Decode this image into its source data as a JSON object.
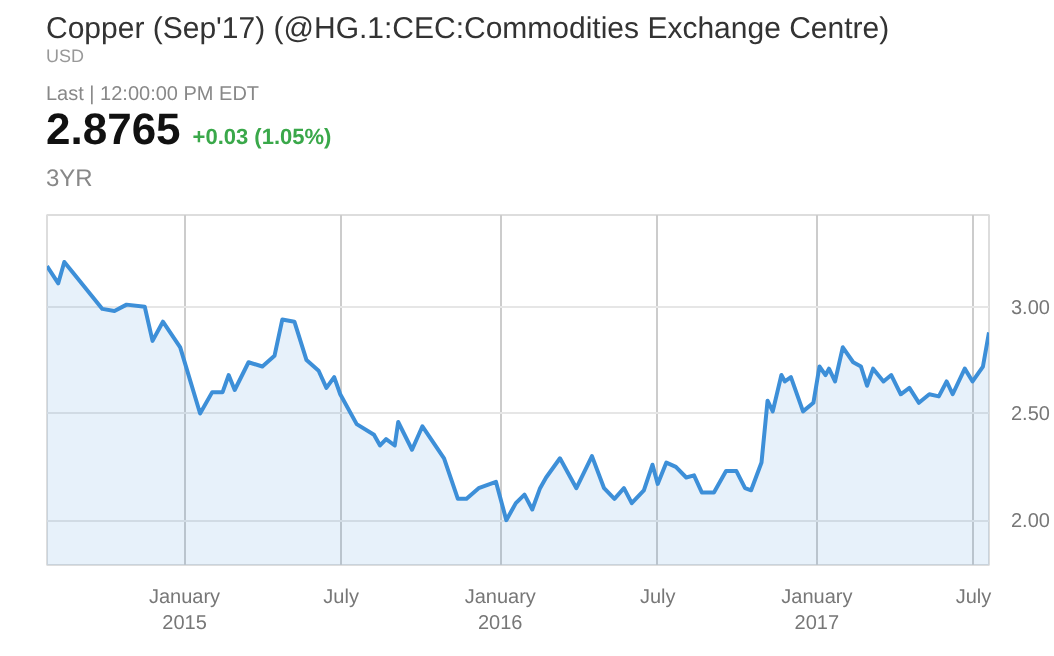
{
  "chart_data": {
    "type": "area",
    "title": "Copper (Sep'17) (@HG.1:CEC:Commodities Exchange Centre)",
    "subtitle": "USD",
    "annotations": [
      "Last | 12:00:00 PM EDT",
      "2.8765",
      "+0.03 (1.05%)",
      "3YR"
    ],
    "x": [
      "2014-07-26",
      "2014-08-08",
      "2014-08-15",
      "2014-08-27",
      "2014-09-10",
      "2014-09-28",
      "2014-10-12",
      "2014-10-26",
      "2014-11-16",
      "2014-11-25",
      "2014-12-07",
      "2014-12-27",
      "2015-01-19",
      "2015-02-02",
      "2015-02-14",
      "2015-02-21",
      "2015-02-28",
      "2015-03-16",
      "2015-04-01",
      "2015-04-15",
      "2015-04-24",
      "2015-05-08",
      "2015-05-22",
      "2015-06-05",
      "2015-06-14",
      "2015-06-23",
      "2015-06-30",
      "2015-07-19",
      "2015-08-08",
      "2015-08-15",
      "2015-08-22",
      "2015-09-01",
      "2015-09-05",
      "2015-09-21",
      "2015-10-03",
      "2015-10-28",
      "2015-11-13",
      "2015-11-23",
      "2015-12-07",
      "2015-12-27",
      "2016-01-08",
      "2016-01-19",
      "2016-01-29",
      "2016-02-07",
      "2016-02-16",
      "2016-02-23",
      "2016-03-10",
      "2016-03-29",
      "2016-04-16",
      "2016-04-30",
      "2016-05-12",
      "2016-05-23",
      "2016-06-01",
      "2016-06-15",
      "2016-06-25",
      "2016-07-01",
      "2016-07-11",
      "2016-07-22",
      "2016-08-03",
      "2016-08-12",
      "2016-08-21",
      "2016-09-04",
      "2016-09-18",
      "2016-09-30",
      "2016-10-10",
      "2016-10-17",
      "2016-10-29",
      "2016-11-05",
      "2016-11-11",
      "2016-11-21",
      "2016-11-25",
      "2016-12-02",
      "2016-12-16",
      "2016-12-28",
      "2017-01-04",
      "2017-01-11",
      "2017-01-15",
      "2017-01-22",
      "2017-01-31",
      "2017-02-12",
      "2017-02-21",
      "2017-02-28",
      "2017-03-07",
      "2017-03-19",
      "2017-03-28",
      "2017-04-08",
      "2017-04-18",
      "2017-04-29",
      "2017-05-11",
      "2017-05-22",
      "2017-05-31",
      "2017-06-07",
      "2017-06-21",
      "2017-06-30",
      "2017-07-12",
      "2017-07-19"
    ],
    "series": [
      {
        "color": "#3d8fd8",
        "values": [
          3.19,
          3.11,
          3.21,
          3.15,
          3.08,
          2.99,
          2.98,
          3.01,
          3.0,
          2.84,
          2.93,
          2.81,
          2.5,
          2.6,
          2.6,
          2.68,
          2.61,
          2.74,
          2.72,
          2.77,
          2.94,
          2.93,
          2.75,
          2.7,
          2.62,
          2.67,
          2.59,
          2.45,
          2.4,
          2.35,
          2.38,
          2.35,
          2.46,
          2.33,
          2.44,
          2.29,
          2.1,
          2.1,
          2.15,
          2.18,
          2.0,
          2.08,
          2.12,
          2.05,
          2.15,
          2.2,
          2.29,
          2.15,
          2.3,
          2.15,
          2.1,
          2.15,
          2.08,
          2.14,
          2.26,
          2.17,
          2.27,
          2.25,
          2.2,
          2.21,
          2.13,
          2.13,
          2.23,
          2.23,
          2.15,
          2.14,
          2.27,
          2.56,
          2.51,
          2.68,
          2.65,
          2.67,
          2.51,
          2.55,
          2.72,
          2.68,
          2.71,
          2.65,
          2.81,
          2.74,
          2.72,
          2.63,
          2.71,
          2.65,
          2.68,
          2.59,
          2.62,
          2.55,
          2.59,
          2.58,
          2.65,
          2.59,
          2.71,
          2.65,
          2.72,
          2.88
        ]
      }
    ],
    "xlim": [
      "2014-07-26",
      "2017-07-19"
    ],
    "xticks": [
      {
        "value": "2015-01-01",
        "label": "January\n2015"
      },
      {
        "value": "2015-07-01",
        "label": "July"
      },
      {
        "value": "2016-01-01",
        "label": "January\n2016"
      },
      {
        "value": "2016-07-01",
        "label": "July"
      },
      {
        "value": "2017-01-01",
        "label": "January\n2017"
      },
      {
        "value": "2017-07-01",
        "label": "July"
      }
    ],
    "ylim": [
      1.79,
      3.43
    ],
    "yticks": [
      {
        "value": 2,
        "label": "2.00"
      },
      {
        "value": 2.5,
        "label": "2.50"
      },
      {
        "value": 3,
        "label": "3.00"
      }
    ],
    "grid": true
  }
}
